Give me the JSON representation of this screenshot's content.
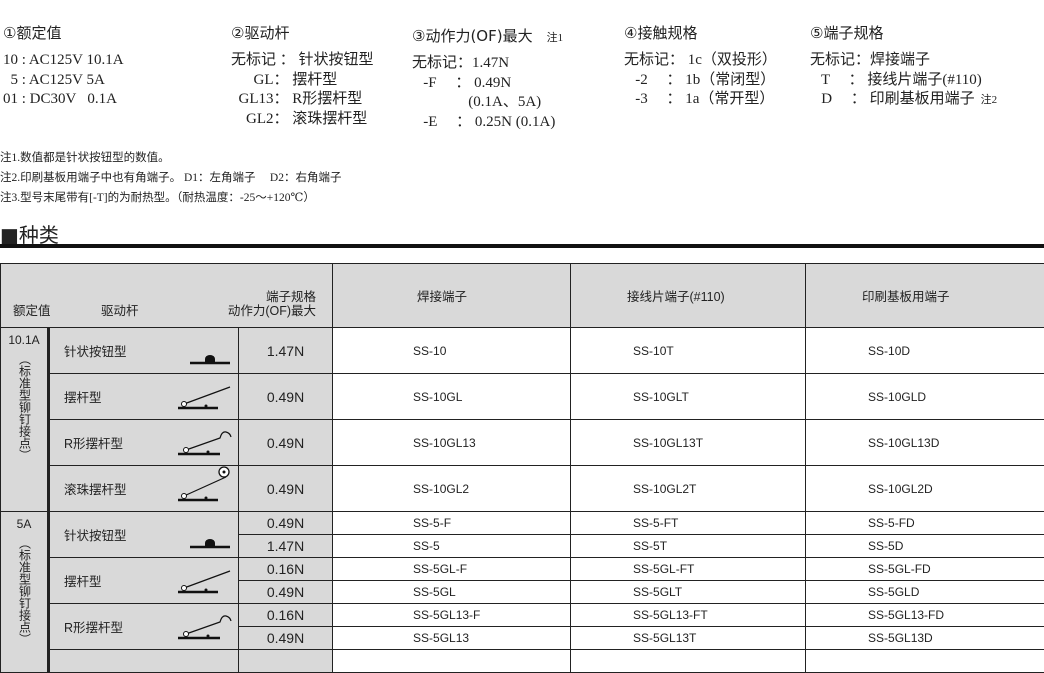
{
  "legend": {
    "rating": {
      "title": "①额定值",
      "lines": [
        "10 : AC125V 10.1A",
        "  5 : AC125V 5A",
        "01 : DC30V   0.1A"
      ]
    },
    "actuator": {
      "title": "②驱动杆",
      "lines": [
        "无标记 ： 针状按钮型",
        "      GL： 摆杆型",
        "  GL13： R形摆杆型",
        "    GL2： 滚珠摆杆型"
      ]
    },
    "force": {
      "title": "③动作力(OF)最大",
      "note": "注1",
      "lines": [
        "无标记：1.47N",
        "   -F     ： 0.49N",
        "               (0.1A、5A)",
        "   -E     ： 0.25N (0.1A)"
      ]
    },
    "contact": {
      "title": "④接触规格",
      "lines": [
        "无标记： 1c（双投形）",
        "   -2     ： 1b（常闭型）",
        "   -3     ： 1a（常开型）"
      ]
    },
    "terminal": {
      "title": "⑤端子规格",
      "lines": [
        "无标记：焊接端子",
        "   T     ： 接线片端子(#110)",
        "   D     ： 印刷基板用端子"
      ],
      "note": "注2"
    }
  },
  "notes": [
    "注1.数值都是针状按钮型的数值。",
    "注2.印刷基板用端子中也有角端子。 D1：左角端子　 D2：右角端子",
    "注3.型号末尾带有[-T]的为耐热型。（耐热温度：-25～+120℃）"
  ],
  "section_title": "■种类",
  "table": {
    "headers": {
      "rating": "额定值",
      "actuator": "驱动杆",
      "terminal_spec": "端子规格",
      "force": "动作力(OF)最大",
      "solder": "焊接端子",
      "tab": "接线片端子(#110)",
      "pcb": "印刷基板用端子"
    },
    "groups": [
      {
        "rating": "10.1A",
        "note": "（标准型铆钉接点）",
        "row_size": "large",
        "actuators": [
          {
            "name": "针状按钮型",
            "icon": "pin-plunger-icon",
            "rows": [
              {
                "force": "1.47N",
                "solder": "SS-10",
                "tab": "SS-10T",
                "pcb": "SS-10D"
              }
            ]
          },
          {
            "name": "摆杆型",
            "icon": "hinge-lever-icon",
            "rows": [
              {
                "force": "0.49N",
                "solder": "SS-10GL",
                "tab": "SS-10GLT",
                "pcb": "SS-10GLD"
              }
            ]
          },
          {
            "name": "R形摆杆型",
            "icon": "simulated-roller-lever-icon",
            "rows": [
              {
                "force": "0.49N",
                "solder": "SS-10GL13",
                "tab": "SS-10GL13T",
                "pcb": "SS-10GL13D"
              }
            ]
          },
          {
            "name": "滚珠摆杆型",
            "icon": "roller-lever-icon",
            "rows": [
              {
                "force": "0.49N",
                "solder": "SS-10GL2",
                "tab": "SS-10GL2T",
                "pcb": "SS-10GL2D"
              }
            ]
          }
        ]
      },
      {
        "rating": "5A",
        "note": "（标准型铆钉接点）",
        "row_size": "small",
        "actuators": [
          {
            "name": "针状按钮型",
            "icon": "pin-plunger-icon",
            "rows": [
              {
                "force": "0.49N",
                "solder": "SS-5-F",
                "tab": "SS-5-FT",
                "pcb": "SS-5-FD"
              },
              {
                "force": "1.47N",
                "solder": "SS-5",
                "tab": "SS-5T",
                "pcb": "SS-5D"
              }
            ]
          },
          {
            "name": "摆杆型",
            "icon": "hinge-lever-icon",
            "rows": [
              {
                "force": "0.16N",
                "solder": "SS-5GL-F",
                "tab": "SS-5GL-FT",
                "pcb": "SS-5GL-FD"
              },
              {
                "force": "0.49N",
                "solder": "SS-5GL",
                "tab": "SS-5GLT",
                "pcb": "SS-5GLD"
              }
            ]
          },
          {
            "name": "R形摆杆型",
            "icon": "simulated-roller-lever-icon",
            "rows": [
              {
                "force": "0.16N",
                "solder": "SS-5GL13-F",
                "tab": "SS-5GL13-FT",
                "pcb": "SS-5GL13-FD"
              },
              {
                "force": "0.49N",
                "solder": "SS-5GL13",
                "tab": "SS-5GL13T",
                "pcb": "SS-5GL13D"
              }
            ]
          }
        ]
      }
    ]
  }
}
